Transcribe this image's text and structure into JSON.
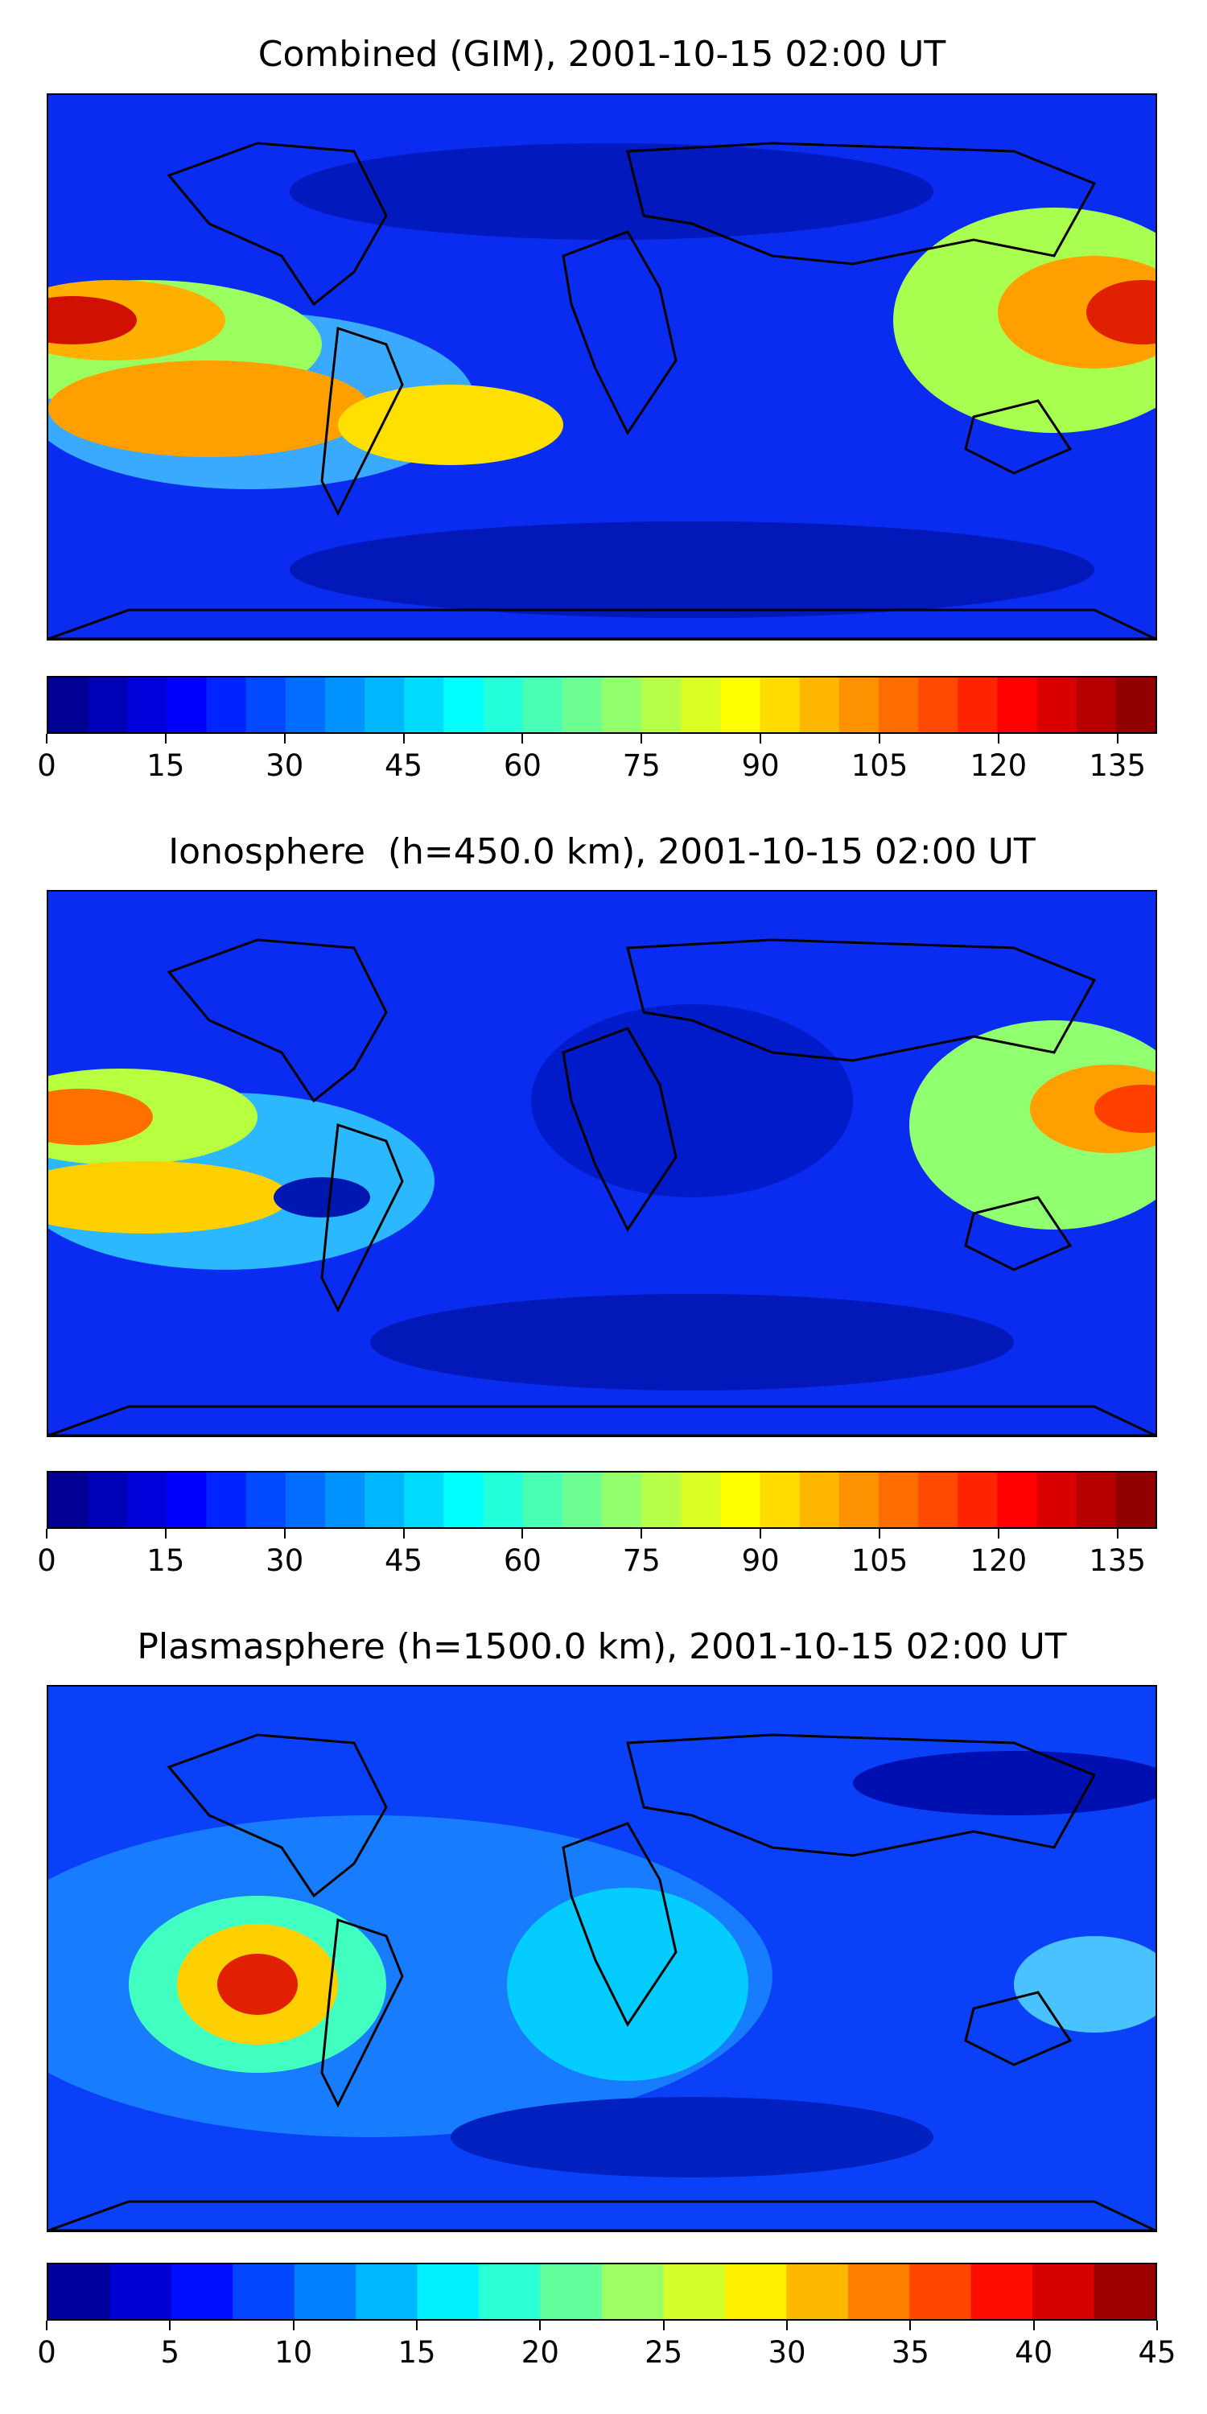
{
  "panels": [
    {
      "id": "combined",
      "title": "Combined (GIM), 2001-10-15 02:00 UT",
      "colorbar_ticks": [
        0,
        15,
        30,
        45,
        60,
        75,
        90,
        105,
        120,
        135
      ],
      "colorbar_max": 140,
      "colorbar_levels": 28
    },
    {
      "id": "ionosphere",
      "title": "Ionosphere  (h=450.0 km), 2001-10-15 02:00 UT",
      "colorbar_ticks": [
        0,
        15,
        30,
        45,
        60,
        75,
        90,
        105,
        120,
        135
      ],
      "colorbar_max": 140,
      "colorbar_levels": 28
    },
    {
      "id": "plasmasphere",
      "title": "Plasmasphere (h=1500.0 km), 2001-10-15 02:00 UT",
      "colorbar_ticks": [
        0,
        5,
        10,
        15,
        20,
        25,
        30,
        35,
        40,
        45
      ],
      "colorbar_max": 45,
      "colorbar_levels": 18
    }
  ],
  "colormap": "jet",
  "coastline_color": "#000000"
}
